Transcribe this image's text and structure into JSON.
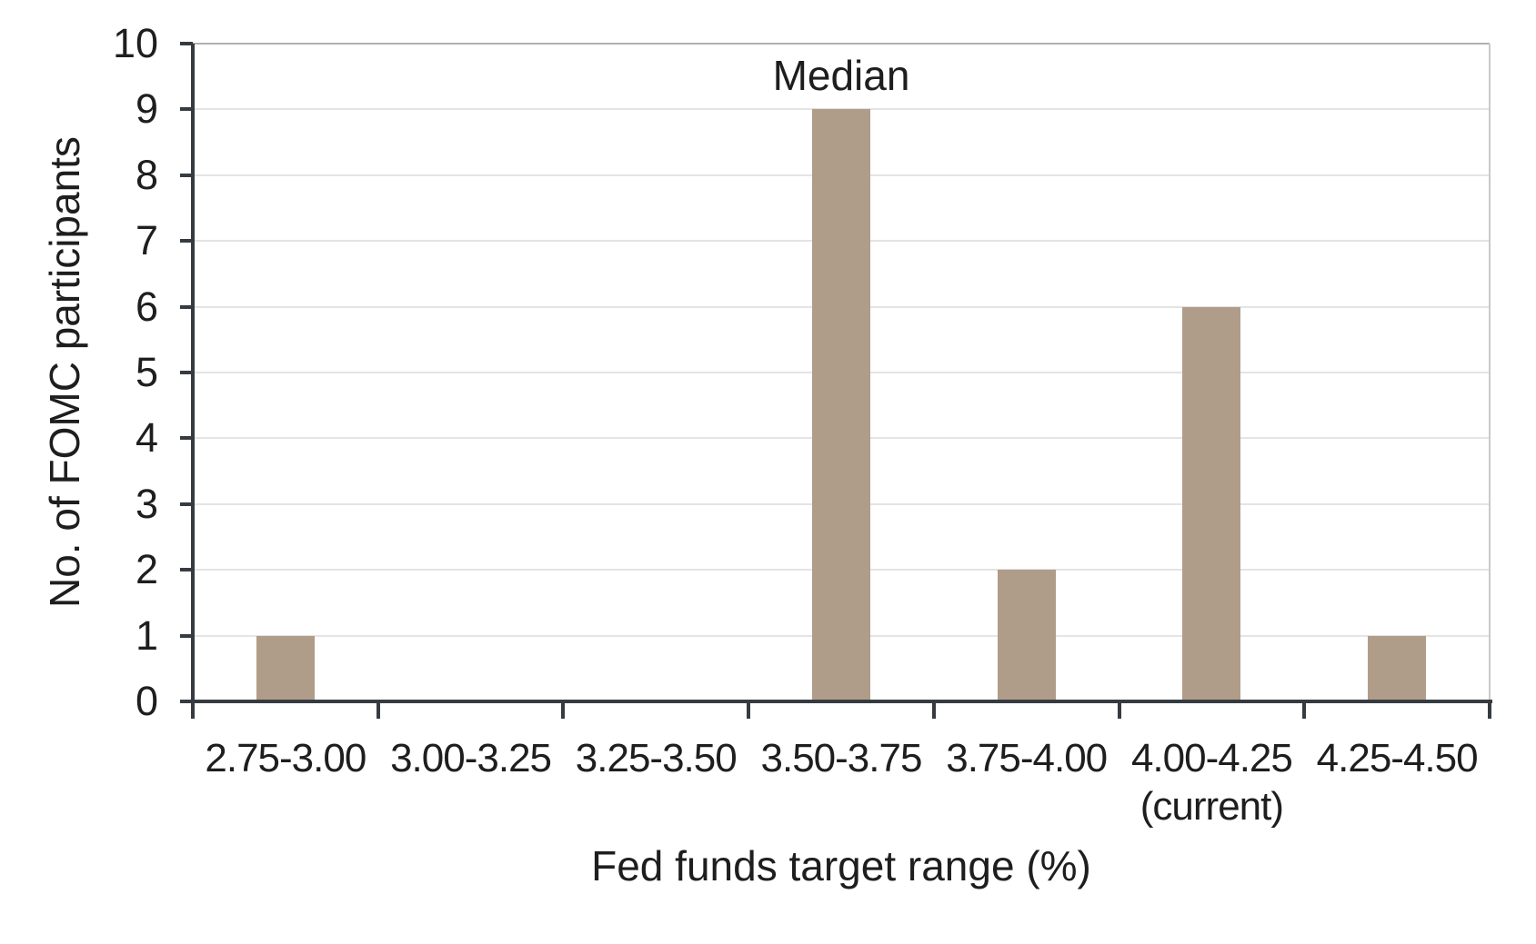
{
  "chart_data": {
    "type": "bar",
    "categories": [
      "2.75-3.00",
      "3.00-3.25",
      "3.25-3.50",
      "3.50-3.75",
      "3.75-4.00",
      "4.00-4.25",
      "4.25-4.50"
    ],
    "sublabels": [
      "",
      "",
      "",
      "",
      "",
      "(current)",
      ""
    ],
    "values": [
      1,
      0,
      0,
      9,
      2,
      6,
      1
    ],
    "annotation": {
      "text": "Median",
      "category_index": 3
    },
    "xlabel": "Fed funds target range (%)",
    "ylabel": "No. of FOMC participants",
    "ylim": [
      0,
      10
    ],
    "ytick_step": 1,
    "grid": "horizontal",
    "legend": "none",
    "colors": {
      "bar": "#b09d89",
      "axis": "#363b41",
      "gridline": "#e4e4e4",
      "top_border": "#b0b0b0",
      "right_border": "#c9c9c9",
      "text": "#1e1e1e"
    }
  }
}
